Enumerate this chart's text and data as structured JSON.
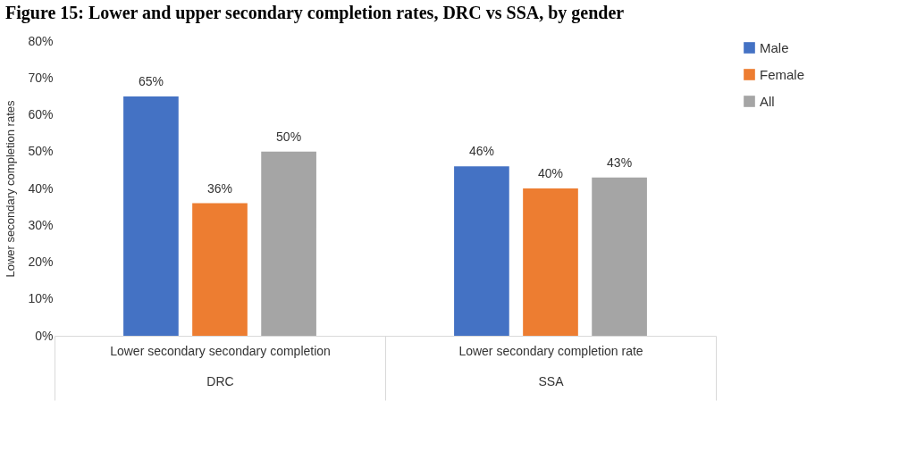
{
  "chart_data": {
    "type": "bar",
    "title": "Figure 15: Lower and upper secondary completion rates, DRC vs SSA, by gender",
    "ylabel": "Lower secondary completion rates",
    "categories": [
      "Lower secondary secondary completion\nDRC",
      "Lower secondary completion rate\nSSA"
    ],
    "series": [
      {
        "name": "Male",
        "color": "#4472c4",
        "values": [
          65,
          46
        ],
        "value_labels": [
          "65%",
          "46%"
        ]
      },
      {
        "name": "Female",
        "color": "#ed7d31",
        "values": [
          36,
          40
        ],
        "value_labels": [
          "36%",
          "40%"
        ]
      },
      {
        "name": "All",
        "color": "#a5a5a5",
        "values": [
          50,
          43
        ],
        "value_labels": [
          "50%",
          "43%"
        ]
      }
    ],
    "ylim": [
      0,
      80
    ],
    "yticks": [
      {
        "value": 0,
        "label": "0%"
      },
      {
        "value": 10,
        "label": "10%"
      },
      {
        "value": 20,
        "label": "20%"
      },
      {
        "value": 30,
        "label": "30%"
      },
      {
        "value": 40,
        "label": "40%"
      },
      {
        "value": 50,
        "label": "50%"
      },
      {
        "value": 60,
        "label": "60%"
      },
      {
        "value": 70,
        "label": "70%"
      },
      {
        "value": 80,
        "label": "80%"
      }
    ],
    "grid": false,
    "legend": "right"
  }
}
